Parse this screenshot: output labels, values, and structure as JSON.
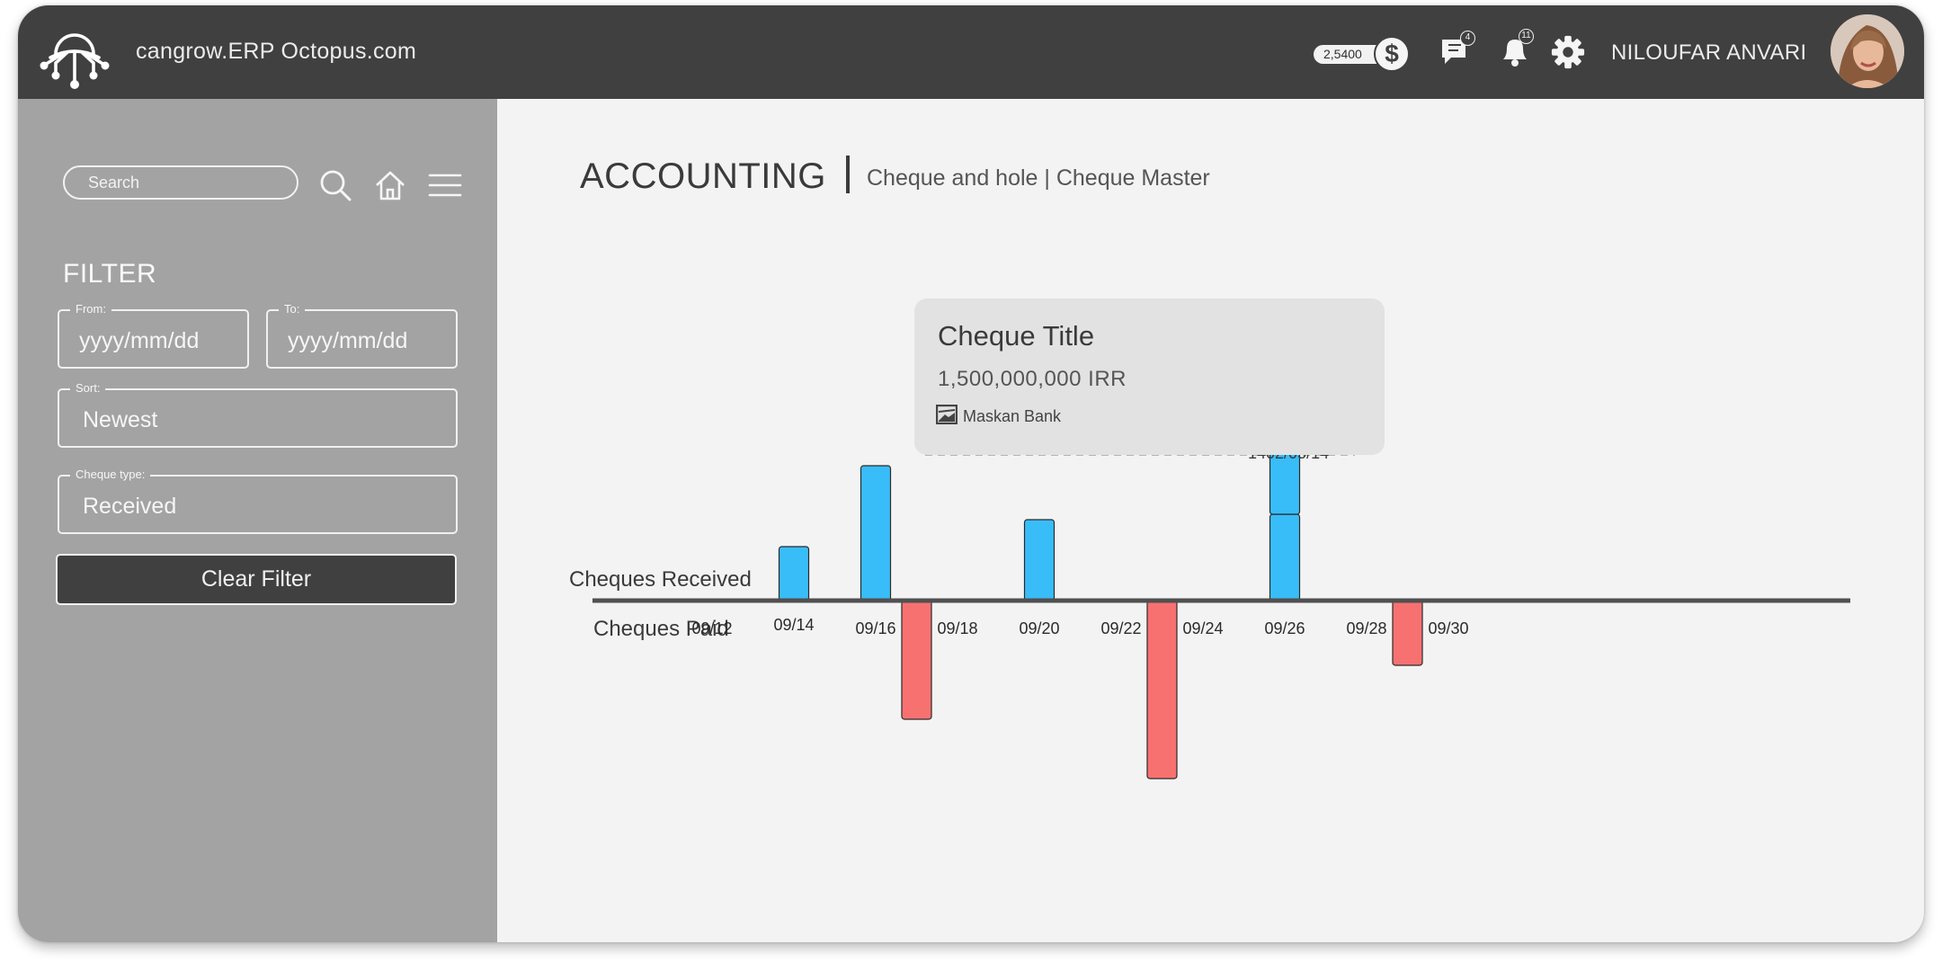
{
  "header": {
    "site_title": "cangrow.ERP Octopus.com",
    "balance": "2,5400",
    "currency_symbol": "$",
    "messages_count": "4",
    "notifications_count": "11",
    "user_name": "NILOUFAR ANVARI"
  },
  "sidebar": {
    "search_placeholder": "Search",
    "filter_title": "FILTER",
    "from_label": "From:",
    "from_placeholder": "yyyy/mm/dd",
    "to_label": "To:",
    "to_placeholder": "yyyy/mm/dd",
    "sort_label": "Sort:",
    "sort_value": "Newest",
    "cheque_type_label": "Cheque type:",
    "cheque_type_value": "Received",
    "clear_filter_label": "Clear Filter"
  },
  "main": {
    "page_title": "ACCOUNTING",
    "breadcrumb": "Cheque and hole | Cheque Master"
  },
  "tooltip": {
    "title": "Cheque Title",
    "amount": "1,500,000,000 IRR",
    "bank": "Maskan Bank",
    "date": "1402/05/14"
  },
  "colors": {
    "received": "#38bdf8",
    "paid": "#f87171",
    "header_bg": "#404040",
    "sidebar_bg": "#a3a3a3"
  },
  "chart_data": {
    "type": "bar",
    "received_label": "Cheques Received",
    "paid_label": "Cheques Paid",
    "tick_labels": [
      "09/12",
      "09/14",
      "09/16",
      "09/18",
      "09/20",
      "09/22",
      "09/24",
      "09/26",
      "09/28",
      "09/30"
    ],
    "received": [
      {
        "day": 14,
        "segments": [
          1
        ]
      },
      {
        "day": 16,
        "segments": [
          2.5
        ]
      },
      {
        "day": 20,
        "segments": [
          1.5
        ]
      },
      {
        "day": 26,
        "segments": [
          1.6,
          3.4
        ]
      }
    ],
    "paid": [
      {
        "day": 17,
        "value": 2.2
      },
      {
        "day": 23,
        "value": 3.3
      },
      {
        "day": 29,
        "value": 1.2
      }
    ]
  }
}
